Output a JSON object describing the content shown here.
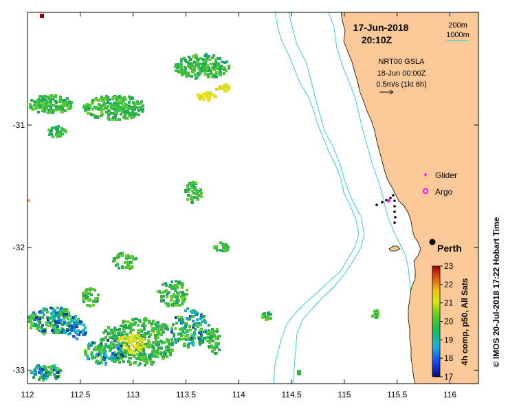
{
  "map": {
    "date_label": "17-Jun-2018",
    "time_label": "20:10Z",
    "x_ticks": [
      {
        "lon": 112,
        "label": "112"
      },
      {
        "lon": 112.5,
        "label": "112.5"
      },
      {
        "lon": 113,
        "label": "113"
      },
      {
        "lon": 113.5,
        "label": "113.5"
      },
      {
        "lon": 114,
        "label": "114"
      },
      {
        "lon": 114.5,
        "label": "114.5"
      },
      {
        "lon": 115,
        "label": "115"
      },
      {
        "lon": 115.5,
        "label": "115.5"
      },
      {
        "lon": 116,
        "label": "116"
      }
    ],
    "y_ticks": [
      {
        "lat": -31,
        "label": "-31"
      },
      {
        "lat": -32,
        "label": "-32"
      },
      {
        "lat": -33,
        "label": "-33"
      }
    ],
    "lon_range": [
      112,
      116.27
    ],
    "lat_range": [
      -33.11,
      -30.08
    ],
    "colors": {
      "land": "#fbc998",
      "isobath": "#33ccdd",
      "background": "#ffffff"
    }
  },
  "isobaths": {
    "label_200": "200m",
    "label_1000": "1000m"
  },
  "gsla": {
    "product": "NRT00 GSLA",
    "date": "18-Jun 00:00Z",
    "scale": "0.5m/s (1kt 6h)"
  },
  "legend": {
    "glider": "Glider",
    "argo": "Argo",
    "glider_color": "#ff00ff",
    "argo_color": "#ff00ff"
  },
  "city": {
    "name": "Perth",
    "lon": 115.86,
    "lat": -31.95
  },
  "colorbar": {
    "label": "4h comp, p50, All Sats",
    "min": 17,
    "max": 23,
    "ticks": [
      "17",
      "18",
      "19",
      "20",
      "21",
      "22",
      "23"
    ]
  },
  "credit": "© IMOS 20-Jul-2018 17:22 Hobart Time"
}
